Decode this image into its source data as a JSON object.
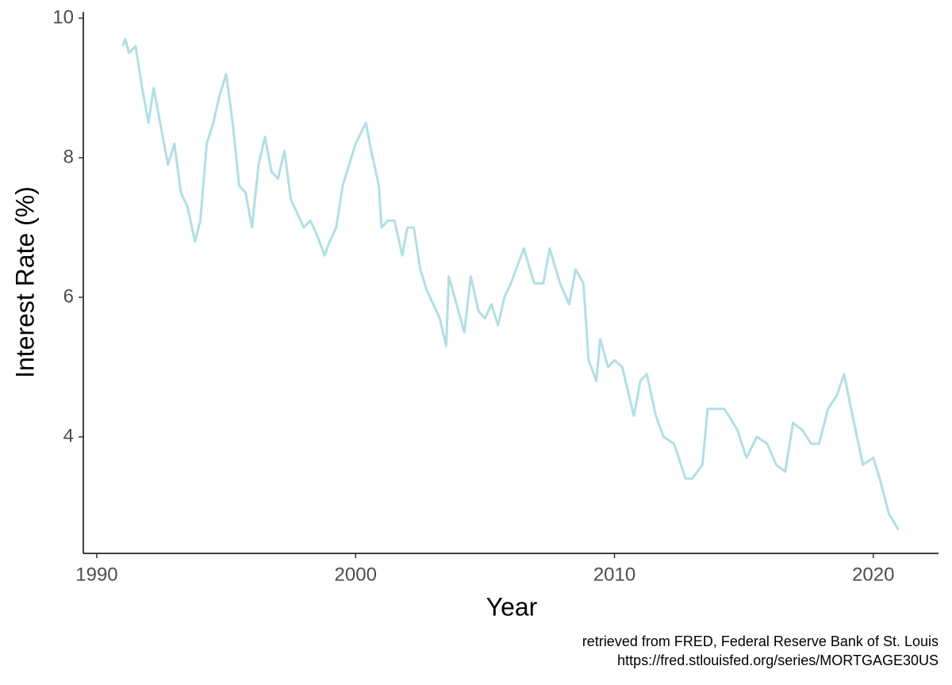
{
  "chart_data": {
    "type": "line",
    "xlabel": "Year",
    "ylabel": "Interest Rate (%)",
    "caption": [
      "retrieved from FRED, Federal Reserve Bank of St. Louis",
      "https://fred.stlouisfed.org/series/MORTGAGE30US"
    ],
    "x": [
      1991.0,
      1991.1,
      1991.25,
      1991.5,
      1991.75,
      1992.0,
      1992.2,
      1992.5,
      1992.75,
      1993.0,
      1993.25,
      1993.5,
      1993.8,
      1994.0,
      1994.25,
      1994.5,
      1994.75,
      1995.0,
      1995.25,
      1995.5,
      1995.75,
      1996.0,
      1996.25,
      1996.5,
      1996.75,
      1997.0,
      1997.25,
      1997.5,
      1997.75,
      1998.0,
      1998.25,
      1998.5,
      1998.8,
      1999.0,
      1999.25,
      1999.5,
      1999.75,
      2000.0,
      2000.4,
      2000.6,
      2000.9,
      2001.0,
      2001.25,
      2001.5,
      2001.8,
      2002.0,
      2002.25,
      2002.5,
      2002.75,
      2003.0,
      2003.25,
      2003.5,
      2003.6,
      2003.9,
      2004.2,
      2004.45,
      2004.75,
      2005.0,
      2005.25,
      2005.5,
      2005.75,
      2006.0,
      2006.5,
      2006.9,
      2007.25,
      2007.5,
      2007.9,
      2008.25,
      2008.5,
      2008.8,
      2009.0,
      2009.3,
      2009.45,
      2009.75,
      2010.0,
      2010.3,
      2010.75,
      2011.0,
      2011.25,
      2011.6,
      2011.9,
      2012.3,
      2012.75,
      2013.0,
      2013.4,
      2013.6,
      2013.9,
      2014.25,
      2014.75,
      2015.1,
      2015.5,
      2015.9,
      2016.25,
      2016.6,
      2016.9,
      2017.25,
      2017.6,
      2017.9,
      2018.25,
      2018.6,
      2018.87,
      2019.2,
      2019.6,
      2020.0,
      2020.25,
      2020.6,
      2020.97
    ],
    "series": [
      {
        "name": "MORTGAGE30US",
        "color": "#b0dfe5",
        "values": [
          9.6,
          9.7,
          9.5,
          9.6,
          9.0,
          8.5,
          9.0,
          8.4,
          7.9,
          8.2,
          7.5,
          7.3,
          6.8,
          7.1,
          8.2,
          8.5,
          8.9,
          9.2,
          8.5,
          7.6,
          7.5,
          7.0,
          7.9,
          8.3,
          7.8,
          7.7,
          8.1,
          7.4,
          7.2,
          7.0,
          7.1,
          6.9,
          6.6,
          6.8,
          7.0,
          7.6,
          7.9,
          8.2,
          8.5,
          8.1,
          7.6,
          7.0,
          7.1,
          7.1,
          6.6,
          7.0,
          7.0,
          6.4,
          6.1,
          5.9,
          5.7,
          5.3,
          6.3,
          5.9,
          5.5,
          6.3,
          5.8,
          5.7,
          5.9,
          5.6,
          6.0,
          6.2,
          6.7,
          6.2,
          6.2,
          6.7,
          6.2,
          5.9,
          6.4,
          6.2,
          5.1,
          4.8,
          5.4,
          5.0,
          5.1,
          5.0,
          4.3,
          4.8,
          4.9,
          4.3,
          4.0,
          3.9,
          3.4,
          3.4,
          3.6,
          4.4,
          4.4,
          4.4,
          4.1,
          3.7,
          4.0,
          3.9,
          3.6,
          3.5,
          4.2,
          4.1,
          3.9,
          3.9,
          4.4,
          4.6,
          4.9,
          4.3,
          3.6,
          3.7,
          3.4,
          2.9,
          2.67
        ]
      }
    ],
    "xlim": [
      1989.48,
      2022.52
    ],
    "xticks": [
      1990,
      2000,
      2010,
      2020
    ],
    "ylim": [
      2.33,
      10.09
    ],
    "yticks": [
      4,
      6,
      8,
      10
    ],
    "grid": false
  }
}
